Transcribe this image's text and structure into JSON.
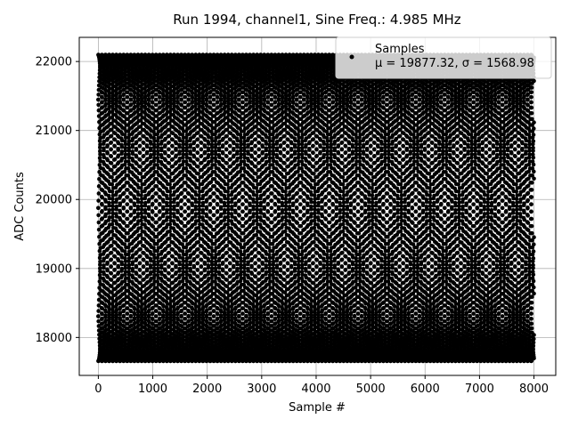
{
  "chart_data": {
    "type": "scatter",
    "title": "Run 1994, channel1, Sine Freq.: 4.985 MHz",
    "xlabel": "Sample #",
    "ylabel": "ADC Counts",
    "xlim": [
      -350,
      8400
    ],
    "ylim": [
      17450,
      22350
    ],
    "xticks": [
      0,
      1000,
      2000,
      3000,
      4000,
      5000,
      6000,
      7000,
      8000
    ],
    "yticks": [
      18000,
      19000,
      20000,
      21000,
      22000
    ],
    "grid": true,
    "legend": {
      "placement": "top-right",
      "series_name": "Samples",
      "stats_label": "μ = 19877.32, σ = 1568.98"
    },
    "series": [
      {
        "name": "Samples",
        "color": "#000000",
        "marker": "dot",
        "model": {
          "form": "sine",
          "center": 19877.32,
          "amplitude": 2220,
          "phase_trajectories": 8,
          "crossing_period_samples": 530,
          "x_start": 0,
          "x_end": 8000,
          "x_step": 4
        }
      }
    ]
  }
}
